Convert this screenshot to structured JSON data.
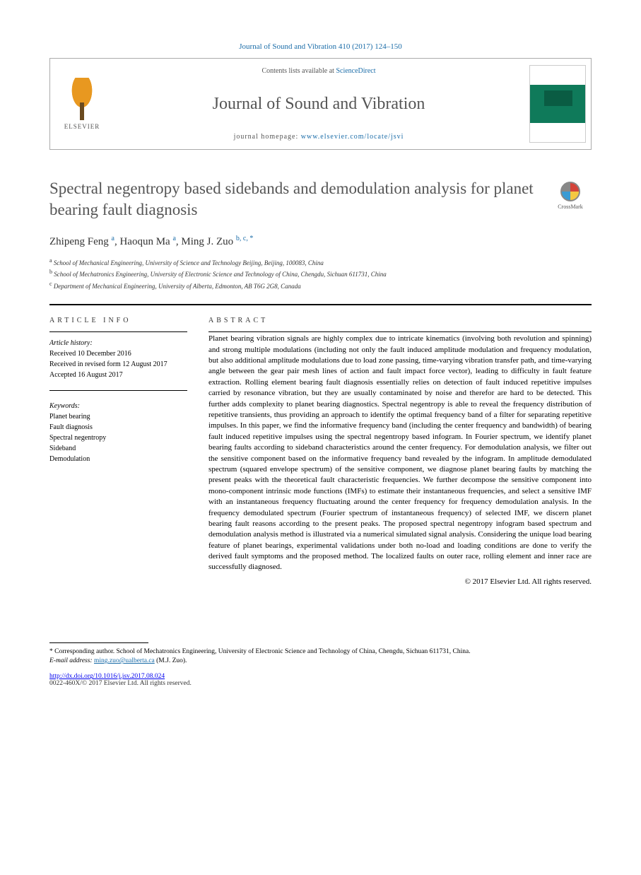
{
  "citation": "Journal of Sound and Vibration 410 (2017) 124–150",
  "header": {
    "contents_prefix": "Contents lists available at ",
    "contents_link": "ScienceDirect",
    "journal_name": "Journal of Sound and Vibration",
    "homepage_prefix": "journal homepage: ",
    "homepage_url": "www.elsevier.com/locate/jsvi",
    "publisher_logo_text": "ELSEVIER"
  },
  "crossmark_label": "CrossMark",
  "title": "Spectral negentropy based sidebands and demodulation analysis for planet bearing fault diagnosis",
  "authors_html": "Zhipeng Feng <sup>a</sup>, Haoqun Ma <sup>a</sup>, Ming J. Zuo <sup>b, c, *</sup>",
  "affiliations": [
    {
      "sup": "a",
      "text": "School of Mechanical Engineering, University of Science and Technology Beijing, Beijing, 100083, China"
    },
    {
      "sup": "b",
      "text": "School of Mechatronics Engineering, University of Electronic Science and Technology of China, Chengdu, Sichuan 611731, China"
    },
    {
      "sup": "c",
      "text": "Department of Mechanical Engineering, University of Alberta, Edmonton, AB T6G 2G8, Canada"
    }
  ],
  "article_info": {
    "header": "ARTICLE INFO",
    "history_label": "Article history:",
    "history": [
      "Received 10 December 2016",
      "Received in revised form 12 August 2017",
      "Accepted 16 August 2017"
    ],
    "keywords_label": "Keywords:",
    "keywords": [
      "Planet bearing",
      "Fault diagnosis",
      "Spectral negentropy",
      "Sideband",
      "Demodulation"
    ]
  },
  "abstract": {
    "header": "ABSTRACT",
    "text": "Planet bearing vibration signals are highly complex due to intricate kinematics (involving both revolution and spinning) and strong multiple modulations (including not only the fault induced amplitude modulation and frequency modulation, but also additional amplitude modulations due to load zone passing, time-varying vibration transfer path, and time-varying angle between the gear pair mesh lines of action and fault impact force vector), leading to difficulty in fault feature extraction. Rolling element bearing fault diagnosis essentially relies on detection of fault induced repetitive impulses carried by resonance vibration, but they are usually contaminated by noise and therefor are hard to be detected. This further adds complexity to planet bearing diagnostics. Spectral negentropy is able to reveal the frequency distribution of repetitive transients, thus providing an approach to identify the optimal frequency band of a filter for separating repetitive impulses. In this paper, we find the informative frequency band (including the center frequency and bandwidth) of bearing fault induced repetitive impulses using the spectral negentropy based infogram. In Fourier spectrum, we identify planet bearing faults according to sideband characteristics around the center frequency. For demodulation analysis, we filter out the sensitive component based on the informative frequency band revealed by the infogram. In amplitude demodulated spectrum (squared envelope spectrum) of the sensitive component, we diagnose planet bearing faults by matching the present peaks with the theoretical fault characteristic frequencies. We further decompose the sensitive component into mono-component intrinsic mode functions (IMFs) to estimate their instantaneous frequencies, and select a sensitive IMF with an instantaneous frequency fluctuating around the center frequency for frequency demodulation analysis. In the frequency demodulated spectrum (Fourier spectrum of instantaneous frequency) of selected IMF, we discern planet bearing fault reasons according to the present peaks. The proposed spectral negentropy infogram based spectrum and demodulation analysis method is illustrated via a numerical simulated signal analysis. Considering the unique load bearing feature of planet bearings, experimental validations under both no-load and loading conditions are done to verify the derived fault symptoms and the proposed method. The localized faults on outer race, rolling element and inner race are successfully diagnosed.",
    "copyright": "© 2017 Elsevier Ltd. All rights reserved."
  },
  "footnote": {
    "corr": "* Corresponding author. School of Mechatronics Engineering, University of Electronic Science and Technology of China, Chengdu, Sichuan 611731, China.",
    "email_label": "E-mail address:",
    "email": "ming.zuo@ualberta.ca",
    "email_name": "(M.J. Zuo)."
  },
  "doi": "http://dx.doi.org/10.1016/j.jsv.2017.08.024",
  "issn": "0022-460X/© 2017 Elsevier Ltd. All rights reserved.",
  "colors": {
    "link": "#1a6ca8",
    "text_gray": "#555555",
    "rule": "#000000"
  }
}
